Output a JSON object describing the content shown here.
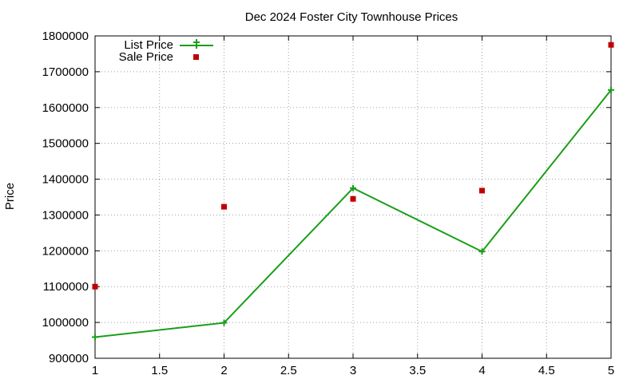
{
  "chart_data": {
    "type": "line",
    "title": "Dec 2024 Foster City Townhouse Prices",
    "xlabel": "",
    "ylabel": "Price",
    "xlim": [
      1,
      5
    ],
    "ylim": [
      900000,
      1800000
    ],
    "x_ticks": [
      "1",
      "1.5",
      "2",
      "2.5",
      "3",
      "3.5",
      "4",
      "4.5",
      "5"
    ],
    "y_ticks": [
      "900000",
      "1000000",
      "1100000",
      "1200000",
      "1300000",
      "1400000",
      "1500000",
      "1600000",
      "1700000",
      "1800000"
    ],
    "grid": true,
    "legend_position": "top-left",
    "series": [
      {
        "name": "List Price",
        "style": "line-with-plus-markers",
        "color": "#1a9e1a",
        "x": [
          1,
          2,
          3,
          4,
          5
        ],
        "y": [
          959000,
          999000,
          1375000,
          1198000,
          1649000
        ]
      },
      {
        "name": "Sale Price",
        "style": "square-points",
        "color": "#c00000",
        "x": [
          1,
          2,
          3,
          4,
          5
        ],
        "y": [
          1100000,
          1323000,
          1345000,
          1368000,
          1775000
        ]
      }
    ]
  }
}
